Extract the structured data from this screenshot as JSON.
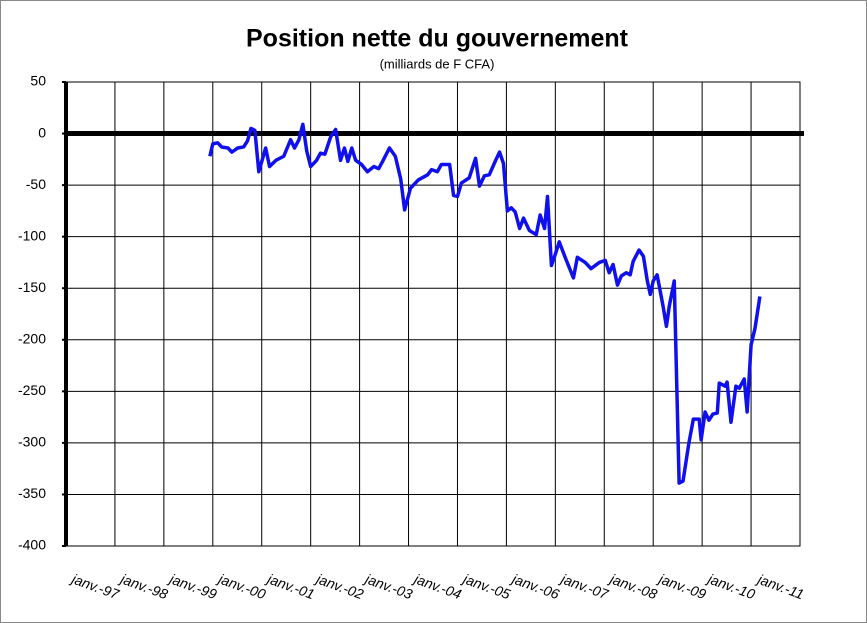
{
  "chart_data": {
    "type": "line",
    "title": "Position nette du gouvernement",
    "subtitle": "(milliards de F CFA)",
    "xlim": [
      1996,
      2011
    ],
    "xticks": [
      {
        "value": 1997,
        "label": "janv.-97"
      },
      {
        "value": 1998,
        "label": "janv.-98"
      },
      {
        "value": 1999,
        "label": "janv.-99"
      },
      {
        "value": 2000,
        "label": "janv.-00"
      },
      {
        "value": 2001,
        "label": "janv.-01"
      },
      {
        "value": 2002,
        "label": "janv.-02"
      },
      {
        "value": 2003,
        "label": "janv.-03"
      },
      {
        "value": 2004,
        "label": "janv.-04"
      },
      {
        "value": 2005,
        "label": "janv.-05"
      },
      {
        "value": 2006,
        "label": "janv.-06"
      },
      {
        "value": 2007,
        "label": "janv.-07"
      },
      {
        "value": 2008,
        "label": "janv.-08"
      },
      {
        "value": 2009,
        "label": "janv.-09"
      },
      {
        "value": 2010,
        "label": "janv.-10"
      },
      {
        "value": 2011,
        "label": "janv.-11"
      }
    ],
    "ylim": [
      -400,
      50
    ],
    "yticks": [
      50,
      0,
      -50,
      -100,
      -150,
      -200,
      -250,
      -300,
      -350,
      -400
    ],
    "grid": true,
    "x": [
      1998.94,
      1999.0,
      1999.1,
      1999.18,
      1999.31,
      1999.39,
      1999.51,
      1999.63,
      1999.71,
      1999.78,
      1999.86,
      1999.94,
      2000.08,
      2000.16,
      2000.29,
      2000.45,
      2000.59,
      2000.67,
      2000.76,
      2000.84,
      2000.92,
      2001.0,
      2001.12,
      2001.2,
      2001.29,
      2001.41,
      2001.51,
      2001.61,
      2001.69,
      2001.76,
      2001.84,
      2001.92,
      2002.04,
      2002.16,
      2002.29,
      2002.39,
      2002.47,
      2002.61,
      2002.73,
      2002.84,
      2002.92,
      2003.04,
      2003.2,
      2003.39,
      2003.47,
      2003.59,
      2003.67,
      2003.84,
      2003.92,
      2004.0,
      2004.08,
      2004.24,
      2004.37,
      2004.45,
      2004.55,
      2004.65,
      2004.78,
      2004.86,
      2004.94,
      2005.02,
      2005.1,
      2005.18,
      2005.27,
      2005.35,
      2005.47,
      2005.61,
      2005.69,
      2005.78,
      2005.84,
      2005.92,
      2006.0,
      2006.08,
      2006.2,
      2006.37,
      2006.45,
      2006.61,
      2006.73,
      2006.9,
      2007.02,
      2007.1,
      2007.18,
      2007.27,
      2007.35,
      2007.45,
      2007.53,
      2007.59,
      2007.71,
      2007.8,
      2007.88,
      2007.94,
      2008.0,
      2008.08,
      2008.2,
      2008.27,
      2008.33,
      2008.43,
      2008.53,
      2008.61,
      2008.73,
      2008.82,
      2008.94,
      2008.98,
      2009.06,
      2009.14,
      2009.22,
      2009.31,
      2009.35,
      2009.47,
      2009.51,
      2009.59,
      2009.69,
      2009.76,
      2009.86,
      2009.92,
      2010.0,
      2010.08,
      2010.18
    ],
    "series": [
      {
        "color": "#1010ee",
        "values": [
          -22,
          -10,
          -9,
          -13,
          -14,
          -18,
          -14,
          -13,
          -7,
          5,
          3,
          -37,
          -14,
          -32,
          -26,
          -22,
          -6,
          -14,
          -6,
          9,
          -17,
          -32,
          -26,
          -19,
          -20,
          -3,
          4,
          -26,
          -14,
          -27,
          -14,
          -26,
          -30,
          -37,
          -32,
          -34,
          -27,
          -14,
          -22,
          -44,
          -74,
          -53,
          -45,
          -40,
          -35,
          -37,
          -30,
          -30,
          -60,
          -61,
          -48,
          -43,
          -24,
          -51,
          -41,
          -40,
          -26,
          -18,
          -29,
          -75,
          -72,
          -76,
          -92,
          -82,
          -94,
          -98,
          -79,
          -92,
          -61,
          -128,
          -117,
          -105,
          -120,
          -140,
          -120,
          -125,
          -131,
          -125,
          -123,
          -135,
          -127,
          -147,
          -138,
          -135,
          -137,
          -124,
          -113,
          -119,
          -143,
          -156,
          -143,
          -137,
          -167,
          -187,
          -167,
          -143,
          -339,
          -337,
          -300,
          -277,
          -277,
          -297,
          -270,
          -278,
          -272,
          -271,
          -242,
          -245,
          -241,
          -280,
          -245,
          -247,
          -238,
          -270,
          -205,
          -189,
          -158
        ]
      }
    ]
  }
}
